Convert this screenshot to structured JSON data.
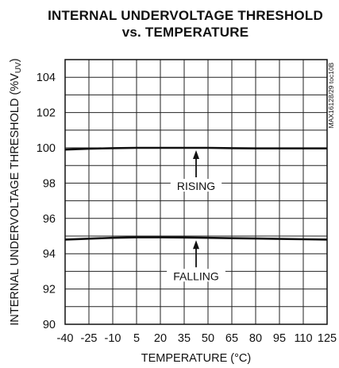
{
  "title_line1": "INTERNAL UNDERVOLTAGE THRESHOLD",
  "title_line2": "vs. TEMPERATURE",
  "side_note": "MAX16128/29 toc10B",
  "chart_data": {
    "type": "line",
    "title": "INTERNAL UNDERVOLTAGE THRESHOLD vs. TEMPERATURE",
    "xlabel": "TEMPERATURE (°C)",
    "ylabel": "INTERNAL UNDERVOLTAGE THRESHOLD (%V",
    "ylabel_sub": "UV",
    "ylabel_close": ")",
    "xlim": [
      -40,
      125
    ],
    "ylim": [
      90,
      105
    ],
    "x_ticks": [
      -40,
      -25,
      -10,
      5,
      20,
      35,
      50,
      65,
      80,
      95,
      110,
      125
    ],
    "y_ticks": [
      90,
      92,
      94,
      96,
      98,
      100,
      102,
      104
    ],
    "grid": true,
    "legend": "none",
    "series": [
      {
        "name": "RISING",
        "x": [
          -40,
          -25,
          -10,
          5,
          20,
          35,
          50,
          65,
          80,
          95,
          110,
          125
        ],
        "values": [
          99.9,
          99.95,
          99.98,
          100.0,
          100.0,
          100.0,
          100.0,
          99.98,
          99.97,
          99.97,
          99.97,
          99.97
        ]
      },
      {
        "name": "FALLING",
        "x": [
          -40,
          -25,
          -10,
          5,
          20,
          35,
          50,
          65,
          80,
          95,
          110,
          125
        ],
        "values": [
          94.8,
          94.85,
          94.9,
          94.93,
          94.93,
          94.92,
          94.9,
          94.88,
          94.86,
          94.84,
          94.82,
          94.8
        ]
      }
    ],
    "annotations": [
      {
        "text": "RISING",
        "x": 42.5,
        "y": 97.7,
        "arrow_to": 100.0
      },
      {
        "text": "FALLING",
        "x": 42.5,
        "y": 92.6,
        "arrow_to": 94.9
      }
    ]
  }
}
